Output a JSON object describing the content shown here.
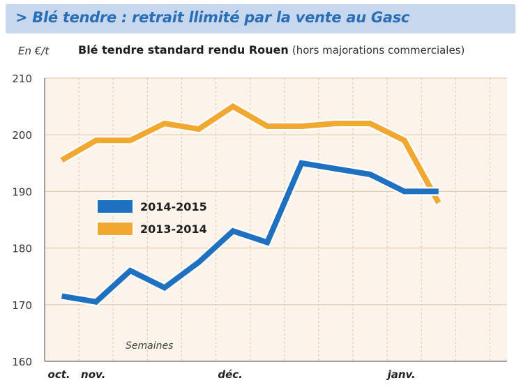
{
  "header": {
    "title": "> Blé tendre : retrait llimité par la vente au Gasc"
  },
  "chart_data": {
    "type": "line",
    "title": "Blé tendre standard rendu Rouen",
    "subtitle": "(hors majorations commerciales)",
    "ylabel": "En €/t",
    "xlabel": "Semaines",
    "ylim": [
      160,
      210
    ],
    "yticks": [
      160,
      170,
      180,
      190,
      200,
      210
    ],
    "xlim": [
      0,
      13.5
    ],
    "grid": true,
    "legend": "center-left",
    "x_tick_labels": [
      {
        "label": "oct.",
        "x": 0.5
      },
      {
        "label": "nov.",
        "x": 1.5
      },
      {
        "label": "déc.",
        "x": 5.5
      },
      {
        "label": "janv.",
        "x": 10.5
      }
    ],
    "x": [
      0.5,
      1.5,
      2.5,
      3.5,
      4.5,
      5.5,
      6.5,
      7.5,
      8.5,
      9.5,
      10.5,
      11.5,
      12.5
    ],
    "series": [
      {
        "name": "2014-2015",
        "color": "#2070c0",
        "x": [
          0.5,
          1.5,
          2.5,
          3.5,
          4.5,
          5.5,
          6.5,
          7.5,
          8.5,
          9.5,
          10.5,
          11.5
        ],
        "values": [
          171.5,
          170.5,
          176,
          173,
          177.5,
          183,
          181,
          195,
          194,
          193,
          190,
          190
        ]
      },
      {
        "name": "2013-2014",
        "color": "#f0a830",
        "x": [
          0.5,
          1.5,
          2.5,
          3.5,
          4.5,
          5.5,
          6.5,
          7.5,
          8.5,
          9.5,
          10.5,
          11.5
        ],
        "values": [
          195.5,
          199,
          199,
          202,
          201,
          205,
          201.5,
          201.5,
          202,
          202,
          199,
          188
        ]
      }
    ]
  },
  "colors": {
    "banner_bg": "#c6d7ee",
    "banner_text": "#2a6fb5",
    "plot_bg": "#fcf4ea",
    "grid": "#e2cdb4",
    "axis": "#666666",
    "series_2014_2015": "#2070c0",
    "series_2013_2014": "#f0a830"
  }
}
